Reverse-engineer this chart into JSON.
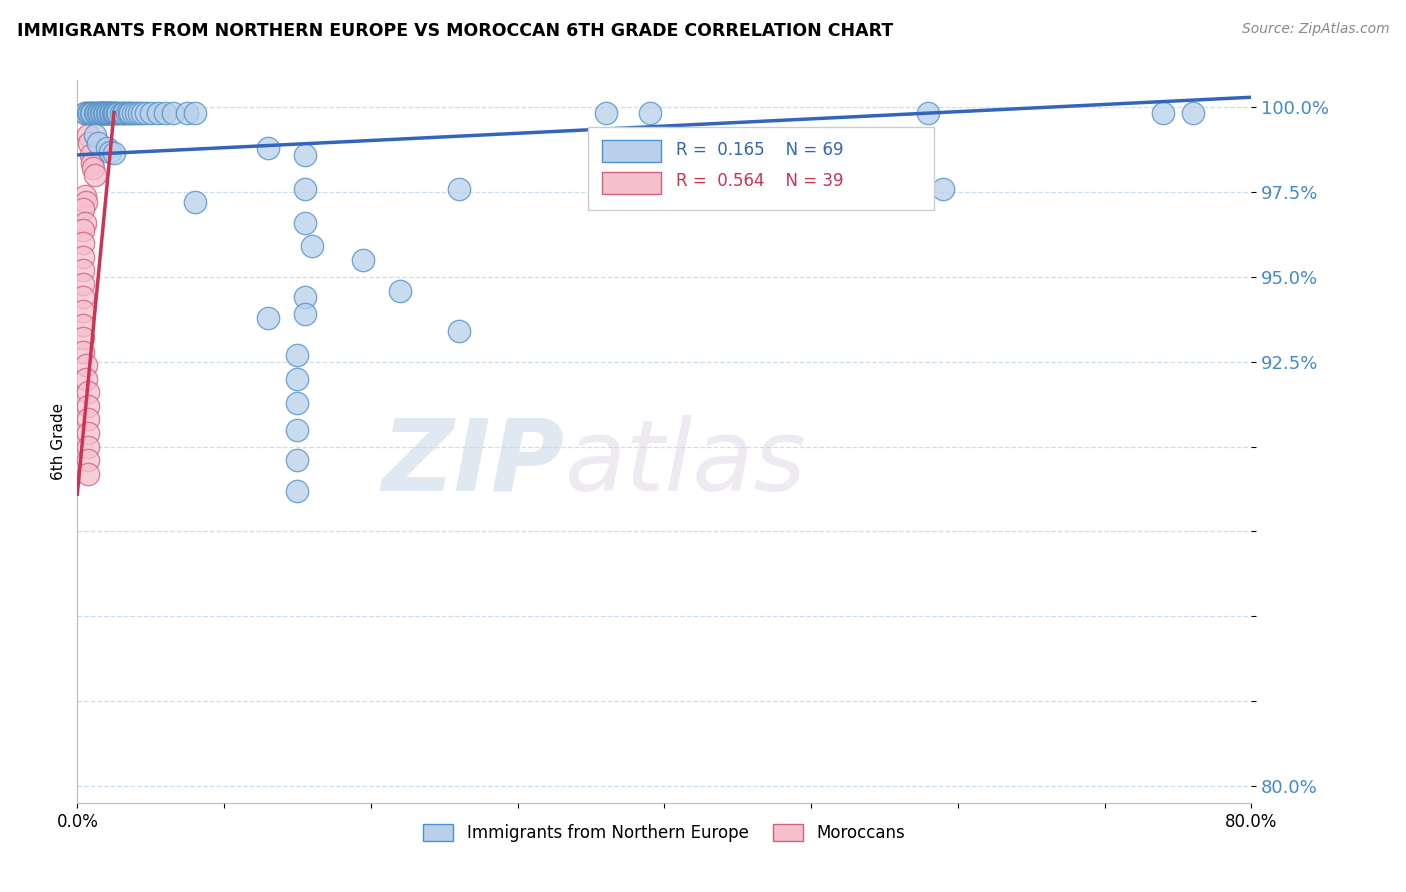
{
  "title": "IMMIGRANTS FROM NORTHERN EUROPE VS MOROCCAN 6TH GRADE CORRELATION CHART",
  "source": "Source: ZipAtlas.com",
  "xlabel_blue": "Immigrants from Northern Europe",
  "xlabel_pink": "Moroccans",
  "ylabel": "6th Grade",
  "xlim": [
    0.0,
    0.8
  ],
  "ylim": [
    0.795,
    1.008
  ],
  "yticks": [
    0.8,
    0.825,
    0.85,
    0.875,
    0.9,
    0.925,
    0.95,
    0.975,
    1.0
  ],
  "ytick_labels": [
    "80.0%",
    "",
    "",
    "",
    "",
    "92.5%",
    "95.0%",
    "97.5%",
    "100.0%"
  ],
  "xtick_vals": [
    0.0,
    0.1,
    0.2,
    0.3,
    0.4,
    0.5,
    0.6,
    0.7,
    0.8
  ],
  "xtick_labels": [
    "0.0%",
    "",
    "",
    "",
    "",
    "",
    "",
    "",
    "80.0%"
  ],
  "R_blue": 0.165,
  "N_blue": 69,
  "R_pink": 0.564,
  "N_pink": 39,
  "blue_fill": "#b8d0ea",
  "blue_edge": "#5090c8",
  "pink_fill": "#f5bfcc",
  "pink_edge": "#d06080",
  "blue_line_color": "#3366bb",
  "pink_line_color": "#cc3355",
  "blue_scatter": [
    [
      0.005,
      0.9985
    ],
    [
      0.007,
      0.9985
    ],
    [
      0.008,
      0.9985
    ],
    [
      0.009,
      0.9985
    ],
    [
      0.01,
      0.9985
    ],
    [
      0.012,
      0.9985
    ],
    [
      0.013,
      0.9985
    ],
    [
      0.014,
      0.9985
    ],
    [
      0.015,
      0.9985
    ],
    [
      0.016,
      0.9985
    ],
    [
      0.017,
      0.9985
    ],
    [
      0.018,
      0.9985
    ],
    [
      0.019,
      0.9985
    ],
    [
      0.02,
      0.9985
    ],
    [
      0.021,
      0.9985
    ],
    [
      0.022,
      0.9985
    ],
    [
      0.023,
      0.9985
    ],
    [
      0.024,
      0.9985
    ],
    [
      0.025,
      0.9985
    ],
    [
      0.026,
      0.9985
    ],
    [
      0.027,
      0.9985
    ],
    [
      0.028,
      0.9985
    ],
    [
      0.03,
      0.9985
    ],
    [
      0.031,
      0.9985
    ],
    [
      0.032,
      0.9985
    ],
    [
      0.034,
      0.9985
    ],
    [
      0.035,
      0.9985
    ],
    [
      0.036,
      0.9985
    ],
    [
      0.038,
      0.9985
    ],
    [
      0.04,
      0.9985
    ],
    [
      0.042,
      0.9985
    ],
    [
      0.044,
      0.9985
    ],
    [
      0.047,
      0.9985
    ],
    [
      0.05,
      0.9985
    ],
    [
      0.055,
      0.9985
    ],
    [
      0.06,
      0.9985
    ],
    [
      0.065,
      0.9985
    ],
    [
      0.075,
      0.9985
    ],
    [
      0.08,
      0.9985
    ],
    [
      0.36,
      0.9985
    ],
    [
      0.39,
      0.9985
    ],
    [
      0.58,
      0.9985
    ],
    [
      0.74,
      0.9985
    ],
    [
      0.76,
      0.9985
    ],
    [
      0.012,
      0.992
    ],
    [
      0.014,
      0.9895
    ],
    [
      0.02,
      0.988
    ],
    [
      0.022,
      0.987
    ],
    [
      0.025,
      0.9865
    ],
    [
      0.13,
      0.988
    ],
    [
      0.155,
      0.986
    ],
    [
      0.155,
      0.976
    ],
    [
      0.08,
      0.972
    ],
    [
      0.26,
      0.976
    ],
    [
      0.155,
      0.966
    ],
    [
      0.16,
      0.959
    ],
    [
      0.195,
      0.955
    ],
    [
      0.22,
      0.946
    ],
    [
      0.59,
      0.976
    ],
    [
      0.155,
      0.944
    ],
    [
      0.155,
      0.939
    ],
    [
      0.13,
      0.938
    ],
    [
      0.26,
      0.934
    ],
    [
      0.15,
      0.927
    ],
    [
      0.15,
      0.92
    ],
    [
      0.15,
      0.913
    ],
    [
      0.15,
      0.905
    ],
    [
      0.15,
      0.896
    ],
    [
      0.15,
      0.887
    ]
  ],
  "pink_scatter": [
    [
      0.005,
      0.9985
    ],
    [
      0.01,
      0.9985
    ],
    [
      0.015,
      0.9985
    ],
    [
      0.016,
      0.9985
    ],
    [
      0.017,
      0.9985
    ],
    [
      0.018,
      0.9985
    ],
    [
      0.019,
      0.9985
    ],
    [
      0.02,
      0.9985
    ],
    [
      0.021,
      0.9985
    ],
    [
      0.022,
      0.9985
    ],
    [
      0.007,
      0.992
    ],
    [
      0.008,
      0.9895
    ],
    [
      0.009,
      0.986
    ],
    [
      0.01,
      0.9835
    ],
    [
      0.011,
      0.982
    ],
    [
      0.012,
      0.98
    ],
    [
      0.005,
      0.974
    ],
    [
      0.006,
      0.972
    ],
    [
      0.004,
      0.97
    ],
    [
      0.005,
      0.966
    ],
    [
      0.004,
      0.964
    ],
    [
      0.004,
      0.96
    ],
    [
      0.004,
      0.956
    ],
    [
      0.004,
      0.952
    ],
    [
      0.004,
      0.948
    ],
    [
      0.004,
      0.944
    ],
    [
      0.004,
      0.94
    ],
    [
      0.004,
      0.936
    ],
    [
      0.004,
      0.932
    ],
    [
      0.004,
      0.928
    ],
    [
      0.006,
      0.924
    ],
    [
      0.006,
      0.92
    ],
    [
      0.007,
      0.916
    ],
    [
      0.007,
      0.912
    ],
    [
      0.007,
      0.908
    ],
    [
      0.007,
      0.904
    ],
    [
      0.007,
      0.9
    ],
    [
      0.007,
      0.896
    ],
    [
      0.007,
      0.892
    ]
  ],
  "watermark_zip": "ZIP",
  "watermark_atlas": "atlas",
  "blue_trend_x": [
    0.0,
    0.8
  ],
  "blue_trend_y": [
    0.986,
    1.003
  ],
  "pink_trend_x": [
    0.0,
    0.025
  ],
  "pink_trend_y": [
    0.886,
    0.9985
  ]
}
